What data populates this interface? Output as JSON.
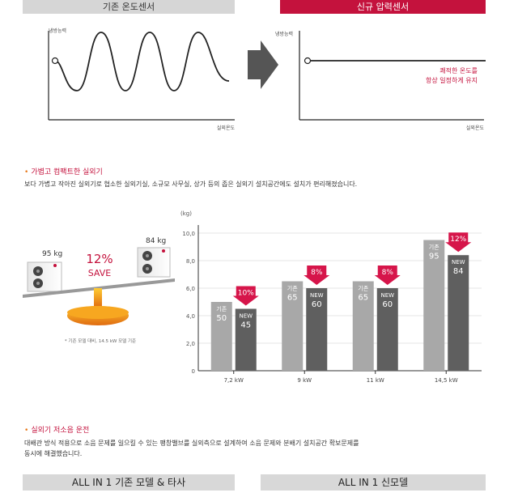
{
  "colors": {
    "accent": "#c4123d",
    "orange": "#e87a1c",
    "bar_old": "#a8a8a8",
    "bar_new": "#5f5f5f"
  },
  "compare": {
    "left_header": "기존 온도센서",
    "right_header": "신규 압력센서",
    "y_label": "냉방능력",
    "x_label": "실외온도",
    "right_note_1": "쾌적한 온도를",
    "right_note_2": "항상 일정하게 유지"
  },
  "compact": {
    "title": "가볍고 컴팩트한 실외기",
    "description": "보다 가볍고 작아진 실외기로 협소한 실외기실, 소규모 사무실, 상가 등의 좁은 실외기 설치공간에도 설치가 편리해졌습니다.",
    "old_weight": "95 kg",
    "new_weight": "84 kg",
    "save_pct": "12%",
    "save_label": "SAVE",
    "footnote": "* 기존 모델 대비, 14.5 kW 모델 기준"
  },
  "chart_data": {
    "type": "bar",
    "ylabel": "(kg)",
    "ylim": [
      0,
      10
    ],
    "yticks": [
      "0",
      "2,0",
      "4,0",
      "6,0",
      "8,0",
      "10,0"
    ],
    "categories": [
      "7,2 kW",
      "9 kW",
      "11 kW",
      "14,5 kW"
    ],
    "series": [
      {
        "name": "기존",
        "values": [
          50,
          65,
          65,
          95
        ],
        "labels": [
          "50",
          "65",
          "65",
          "95"
        ]
      },
      {
        "name": "NEW",
        "values": [
          45,
          60,
          60,
          84
        ],
        "labels": [
          "45",
          "60",
          "60",
          "84"
        ]
      }
    ],
    "savings": [
      "10%",
      "8%",
      "8%",
      "12%"
    ]
  },
  "noise": {
    "title": "실외기 저소음 운전",
    "description_1": "대배관 방식 적용으로 소음 문제를 일으킬 수 있는 팽창밸브를 실외측으로 설계하여 소음 문제와 분배기 설치공간 확보문제를",
    "description_2": "동시에 해결했습니다.",
    "left_header": "ALL IN 1 기존 모델 & 타사",
    "right_header": "ALL IN 1 신모델"
  }
}
